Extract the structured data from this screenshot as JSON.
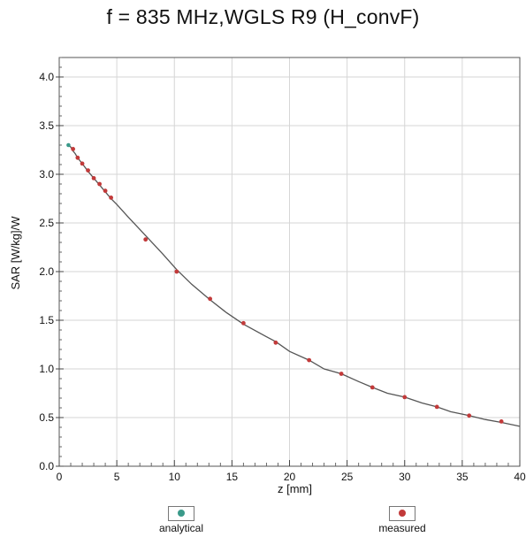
{
  "chart_data": {
    "type": "scatter",
    "title": "f = 835 MHz,WGLS R9 (H_convF)",
    "xlabel": "z [mm]",
    "ylabel": "SAR [W/kg]/W",
    "xlim": [
      0,
      40
    ],
    "ylim": [
      0,
      4.2
    ],
    "x_ticks": [
      0,
      5,
      10,
      15,
      20,
      25,
      30,
      35,
      40
    ],
    "y_ticks": [
      0.0,
      0.5,
      1.0,
      1.5,
      2.0,
      2.5,
      3.0,
      3.5,
      4.0
    ],
    "x_tick_labels": [
      "0",
      "5",
      "10",
      "15",
      "20",
      "25",
      "30",
      "35",
      "40"
    ],
    "y_tick_labels": [
      "0.0",
      "0.5",
      "1.0",
      "1.5",
      "2.0",
      "2.5",
      "3.0",
      "3.5",
      "4.0"
    ],
    "grid": true,
    "legend_position": "bottom",
    "series": [
      {
        "name": "analytical",
        "color": "#3a9a8a",
        "x": [
          0.8,
          1.0,
          1.2,
          1.4,
          1.6,
          1.8,
          2.0,
          2.5,
          3.0,
          3.5,
          4.0,
          4.5,
          5.0,
          6.0,
          7.5,
          9.0,
          10.2,
          11.5,
          13.1,
          14.5,
          16.0,
          18.0,
          18.8,
          20.0,
          21.7,
          23.0,
          24.5,
          26.0,
          27.2,
          28.5,
          30.0,
          31.5,
          32.8,
          34.0,
          35.6,
          37.0,
          38.4,
          40.0
        ],
        "y": [
          3.3,
          3.28,
          3.24,
          3.21,
          3.17,
          3.14,
          3.11,
          3.03,
          2.96,
          2.89,
          2.82,
          2.75,
          2.69,
          2.56,
          2.37,
          2.18,
          2.02,
          1.87,
          1.71,
          1.58,
          1.46,
          1.33,
          1.28,
          1.18,
          1.09,
          1.0,
          0.95,
          0.87,
          0.81,
          0.75,
          0.71,
          0.65,
          0.61,
          0.56,
          0.52,
          0.48,
          0.45,
          0.41
        ]
      },
      {
        "name": "measured",
        "color": "#c23a3a",
        "x": [
          1.2,
          1.6,
          2.0,
          2.5,
          3.0,
          3.5,
          4.0,
          4.5,
          7.5,
          10.2,
          13.1,
          16.0,
          18.8,
          21.7,
          24.5,
          27.2,
          30.0,
          32.8,
          35.6,
          38.4
        ],
        "y": [
          3.26,
          3.17,
          3.11,
          3.04,
          2.96,
          2.9,
          2.83,
          2.76,
          2.33,
          2.0,
          1.72,
          1.47,
          1.27,
          1.09,
          0.95,
          0.81,
          0.71,
          0.61,
          0.52,
          0.46
        ]
      }
    ]
  }
}
